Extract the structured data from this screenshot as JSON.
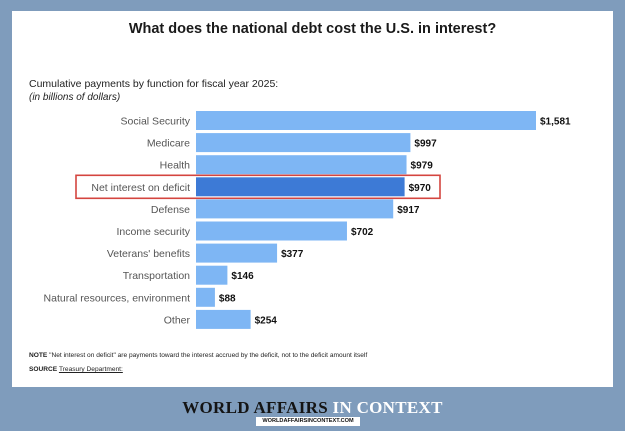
{
  "title": "What does the national debt cost the U.S. in interest?",
  "subtitle": "Cumulative payments by function for fiscal year 2025:",
  "subtitle_units": "(in billions of dollars)",
  "note_label": "NOTE",
  "note_text": " \"Net interest on deficit\" are payments toward the interest accrued by the deficit, not to the deficit amount itself",
  "source_label": "SOURCE",
  "source_text": "Treasury Department:",
  "brand_dark": "WORLD AFFAIRS",
  "brand_light": " IN CONTEXT",
  "brand_url": "WORLDAFFAIRSINCONTEXT.COM",
  "colors": {
    "bar": "#7eb6f4",
    "highlight_bar": "#3d7ad6",
    "highlight_box": "#d4453f",
    "background": "#7f9cbc"
  },
  "chart_data": {
    "type": "bar",
    "orientation": "horizontal",
    "categories": [
      "Social Security",
      "Medicare",
      "Health",
      "Net interest on deficit",
      "Defense",
      "Income security",
      "Veterans' benefits",
      "Transportation",
      "Natural resources, environment",
      "Other"
    ],
    "values": [
      1581,
      997,
      979,
      970,
      917,
      702,
      377,
      146,
      88,
      254
    ],
    "value_labels": [
      "$1,581",
      "$997",
      "$979",
      "$970",
      "$917",
      "$702",
      "$377",
      "$146",
      "$88",
      "$254"
    ],
    "highlight": "Net interest on deficit",
    "xlim": [
      0,
      1581
    ],
    "grid": false,
    "legend": "none"
  }
}
